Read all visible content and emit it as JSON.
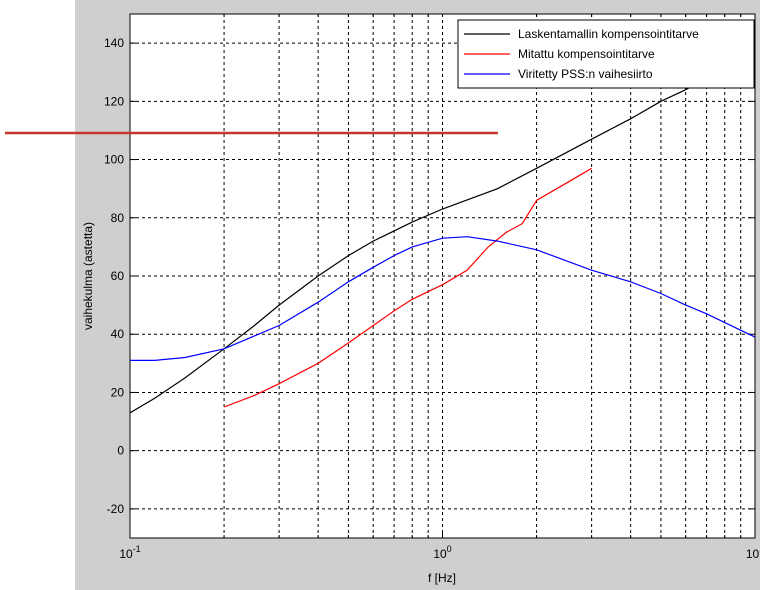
{
  "chart_data": {
    "type": "line",
    "xscale": "log",
    "xlim": [
      0.1,
      10
    ],
    "ylim": [
      -30,
      150
    ],
    "xlabel": "f [Hz]",
    "ylabel": "vaihekulma (astetta)",
    "grid": true,
    "legend_position": "top-right",
    "x_tick_labels": [
      {
        "base": "10",
        "exp": "-1",
        "value": 0.1
      },
      {
        "base": "10",
        "exp": "0",
        "value": 1
      },
      {
        "base": "10",
        "exp": "1",
        "value": 10
      }
    ],
    "y_ticks": [
      -20,
      0,
      20,
      40,
      60,
      80,
      100,
      120,
      140
    ],
    "series": [
      {
        "name": "Laskentamallin kompensointitarve",
        "color": "#000000",
        "points": [
          [
            0.1,
            13
          ],
          [
            0.12,
            18
          ],
          [
            0.15,
            25
          ],
          [
            0.2,
            35
          ],
          [
            0.25,
            43
          ],
          [
            0.3,
            50
          ],
          [
            0.4,
            60
          ],
          [
            0.5,
            67
          ],
          [
            0.6,
            72
          ],
          [
            0.7,
            75.5
          ],
          [
            0.8,
            78.5
          ],
          [
            1,
            83
          ],
          [
            1.5,
            90
          ],
          [
            2,
            97
          ],
          [
            3,
            107
          ],
          [
            4,
            114
          ],
          [
            5,
            120
          ],
          [
            6,
            124
          ],
          [
            7,
            128
          ],
          [
            8,
            131
          ],
          [
            10,
            137
          ]
        ]
      },
      {
        "name": "Mitattu kompensointitarve",
        "color": "#ff0000",
        "points": [
          [
            0.2,
            15
          ],
          [
            0.25,
            19
          ],
          [
            0.3,
            23
          ],
          [
            0.4,
            30
          ],
          [
            0.5,
            37
          ],
          [
            0.6,
            43
          ],
          [
            0.7,
            48
          ],
          [
            0.8,
            52
          ],
          [
            1,
            57
          ],
          [
            1.2,
            62
          ],
          [
            1.4,
            70
          ],
          [
            1.6,
            75
          ],
          [
            1.8,
            78
          ],
          [
            2,
            86
          ],
          [
            2.5,
            92
          ],
          [
            3,
            97
          ]
        ]
      },
      {
        "name": "Viritetty PSS:n vaihesiirto",
        "color": "#0000ff",
        "points": [
          [
            0.1,
            31
          ],
          [
            0.12,
            31
          ],
          [
            0.15,
            32
          ],
          [
            0.2,
            35
          ],
          [
            0.3,
            43
          ],
          [
            0.4,
            51
          ],
          [
            0.5,
            58
          ],
          [
            0.6,
            63
          ],
          [
            0.7,
            67
          ],
          [
            0.8,
            70
          ],
          [
            1,
            73
          ],
          [
            1.2,
            73.5
          ],
          [
            1.5,
            72
          ],
          [
            2,
            69
          ],
          [
            3,
            62
          ],
          [
            4,
            58
          ],
          [
            5,
            54
          ],
          [
            6,
            50
          ],
          [
            7,
            47
          ],
          [
            8,
            44
          ],
          [
            10,
            39
          ]
        ]
      }
    ]
  },
  "overlay": {
    "line_color": "#c0392b"
  }
}
